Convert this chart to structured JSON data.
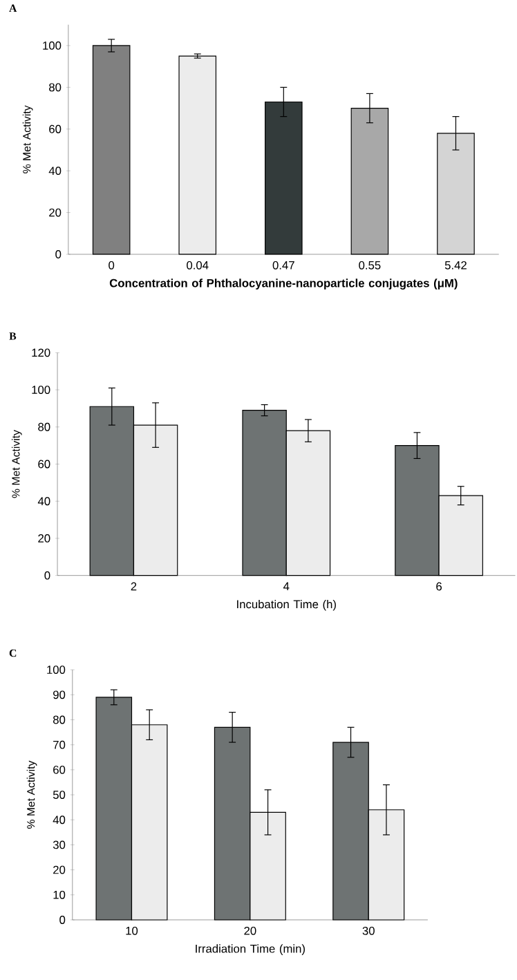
{
  "chart_data": [
    {
      "type": "bar",
      "title": "A",
      "xlabel": "Concentration of Phthalocyanine-nanoparticle conjugates (μM)",
      "ylabel": "% Met Activity",
      "categories": [
        "0",
        "0.04",
        "0.47",
        "0.55",
        "5.42"
      ],
      "values": [
        100,
        95,
        73,
        70,
        58
      ],
      "errors": [
        3,
        1,
        7,
        7,
        8
      ],
      "colors": [
        "#808080",
        "#ececec",
        "#333b3b",
        "#a8a8a8",
        "#d4d4d4"
      ],
      "ylim": [
        0,
        110
      ],
      "yticks": [
        0,
        20,
        40,
        60,
        80,
        100
      ]
    },
    {
      "type": "bar",
      "title": "B",
      "xlabel": "Incubation Time (h)",
      "ylabel": "% Met Activity",
      "categories": [
        "2",
        "4",
        "6"
      ],
      "series": [
        {
          "color": "#6e7373",
          "values": [
            91,
            89,
            70
          ],
          "errors": [
            10,
            3,
            7
          ]
        },
        {
          "color": "#ececec",
          "values": [
            81,
            78,
            43
          ],
          "errors": [
            12,
            6,
            5
          ]
        }
      ],
      "ylim": [
        0,
        120
      ],
      "yticks": [
        0,
        20,
        40,
        60,
        80,
        100,
        120
      ]
    },
    {
      "type": "bar",
      "title": "C",
      "xlabel": "Irradiation Time (min)",
      "ylabel": "% Met Activity",
      "categories": [
        "10",
        "20",
        "30"
      ],
      "series": [
        {
          "color": "#6e7373",
          "values": [
            89,
            77,
            71
          ],
          "errors": [
            3,
            6,
            6
          ]
        },
        {
          "color": "#ececec",
          "values": [
            78,
            43,
            44
          ],
          "errors": [
            6,
            9,
            10
          ]
        }
      ],
      "ylim": [
        0,
        100
      ],
      "yticks": [
        0,
        10,
        20,
        30,
        40,
        50,
        60,
        70,
        80,
        90,
        100
      ]
    }
  ]
}
